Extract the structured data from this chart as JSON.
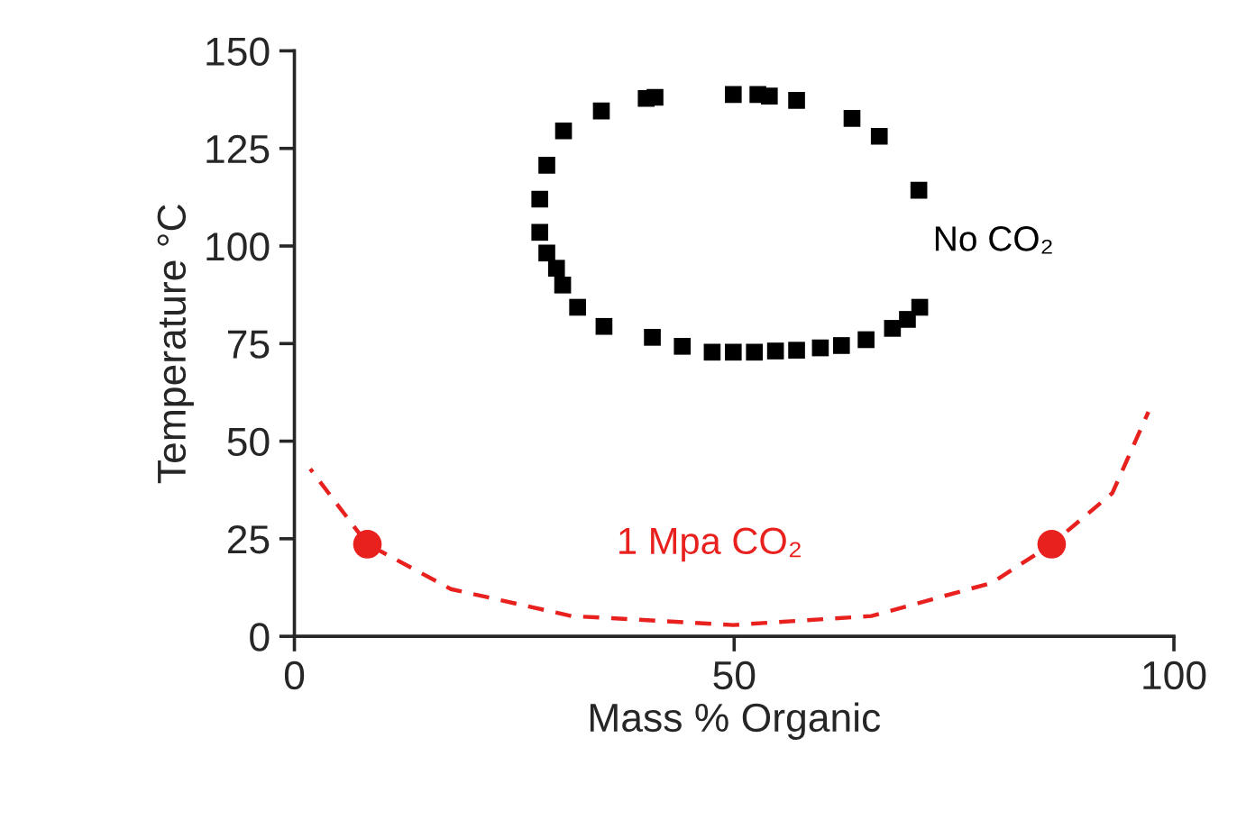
{
  "chart_data": {
    "type": "scatter",
    "xlabel": "Mass % Organic",
    "ylabel": "Temperature °C",
    "xlim": [
      0,
      100
    ],
    "xticks": [
      0,
      50,
      100
    ],
    "ylim": [
      0,
      150
    ],
    "yticks": [
      0,
      25,
      50,
      75,
      100,
      125,
      150
    ],
    "grid": false,
    "legend": false,
    "series": [
      {
        "name": "No CO₂",
        "marker": "square",
        "color": "#000000",
        "x": [
          34.9,
          30.6,
          28.7,
          27.9,
          27.9,
          28.7,
          29.8,
          30.5,
          32.2,
          35.2,
          40.7,
          44.1,
          47.5,
          49.9,
          52.3,
          54.7,
          57.1,
          59.8,
          62.2,
          65.0,
          68.0,
          69.7,
          71.1,
          71.0,
          66.5,
          63.4,
          57.1,
          54.0,
          52.7,
          49.9,
          41.0,
          40.0
        ],
        "values": [
          134.6,
          129.5,
          120.7,
          112.0,
          103.5,
          98.2,
          94.3,
          90.0,
          84.3,
          79.4,
          76.6,
          74.3,
          72.8,
          72.8,
          72.8,
          73.1,
          73.3,
          73.9,
          74.5,
          76.0,
          78.9,
          81.2,
          84.3,
          114.3,
          128.1,
          132.7,
          137.3,
          138.4,
          138.8,
          138.8,
          138.1,
          137.8
        ]
      },
      {
        "type": "line",
        "line_style": "dashed",
        "marker": "none",
        "color": "#e8201e",
        "x": [
          1.8,
          8.3,
          17.8,
          31.5,
          49.9,
          65.6,
          79.3,
          86.1,
          93.0,
          97.1
        ],
        "values": [
          42.9,
          23.6,
          12.1,
          5.2,
          2.9,
          5.2,
          13.7,
          23.6,
          36.7,
          57.5
        ]
      },
      {
        "name": "1 Mpa CO₂",
        "marker": "circle",
        "color": "#e8201e",
        "x": [
          8.3,
          86.1
        ],
        "values": [
          23.6,
          23.6
        ]
      }
    ]
  }
}
